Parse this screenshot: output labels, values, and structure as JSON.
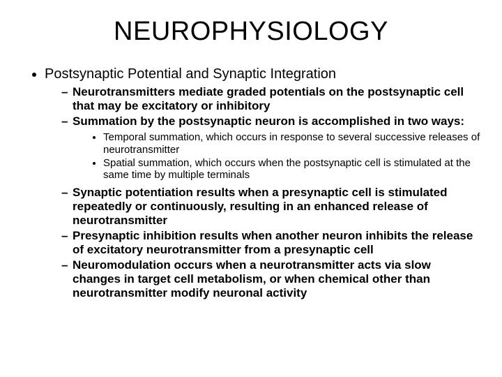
{
  "title": "NEUROPHYSIOLOGY",
  "lvl1": {
    "item0": "Postsynaptic Potential and Synaptic Integration"
  },
  "lvl2a": {
    "item0": "Neurotransmitters mediate graded potentials on the postsynaptic cell that may be excitatory or inhibitory",
    "item1": "Summation by the postsynaptic neuron is accomplished in two ways:"
  },
  "lvl3": {
    "item0": "Temporal summation, which occurs in response to several successive releases of neurotransmitter",
    "item1": "Spatial summation, which occurs when the postsynaptic cell is stimulated at the same time by multiple terminals"
  },
  "lvl2b": {
    "item0": "Synaptic potentiation results when a presynaptic cell is stimulated repeatedly or continuously, resulting in an enhanced release of neurotransmitter",
    "item1": "Presynaptic inhibition results when another neuron inhibits the release of excitatory neurotransmitter from a presynaptic cell",
    "item2": "Neuromodulation occurs when a neurotransmitter acts via slow changes in target cell metabolism, or when chemical other than neurotransmitter modify neuronal activity"
  },
  "colors": {
    "background": "#ffffff",
    "text": "#000000"
  },
  "typography": {
    "title_fontsize": 38,
    "lvl1_fontsize": 20,
    "lvl2_fontsize": 17,
    "lvl3_fontsize": 15,
    "font_family": "Arial"
  }
}
